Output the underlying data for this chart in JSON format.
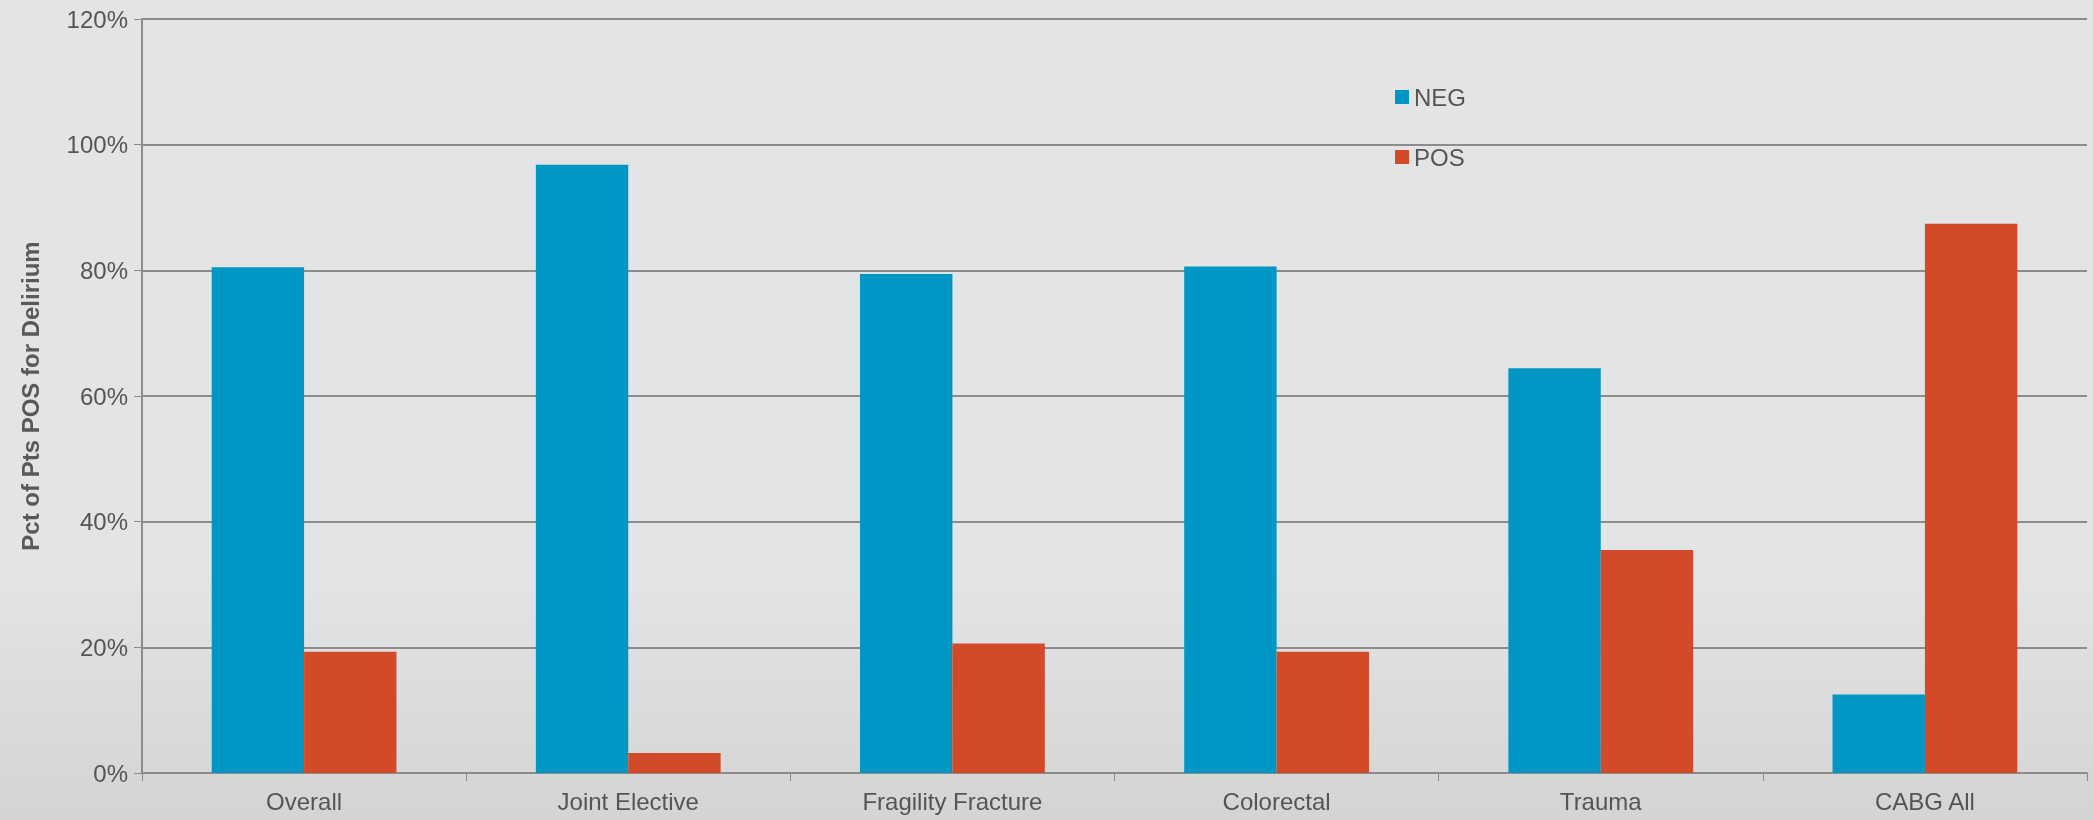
{
  "chart_data": {
    "type": "bar",
    "ylabel": "Pct of Pts POS for Delirium",
    "categories": [
      "Overall",
      "Joint Elective",
      "Fragility Fracture",
      "Colorectal",
      "Trauma",
      "CABG All"
    ],
    "series": [
      {
        "name": "NEG",
        "color": "#0097c4",
        "values": [
          80.5,
          96.8,
          79.4,
          80.6,
          64.4,
          12.5
        ]
      },
      {
        "name": "POS",
        "color": "#d34a29",
        "values": [
          19.3,
          3.2,
          20.6,
          19.3,
          35.5,
          87.4
        ]
      }
    ],
    "ylim": [
      0,
      120
    ],
    "yticks": [
      {
        "value": 0,
        "label": "0%"
      },
      {
        "value": 20,
        "label": "20%"
      },
      {
        "value": 40,
        "label": "40%"
      },
      {
        "value": 60,
        "label": "60%"
      },
      {
        "value": 80,
        "label": "80%"
      },
      {
        "value": 100,
        "label": "100%"
      },
      {
        "value": 120,
        "label": "120%"
      }
    ],
    "grid": "y",
    "legend": "top right"
  }
}
